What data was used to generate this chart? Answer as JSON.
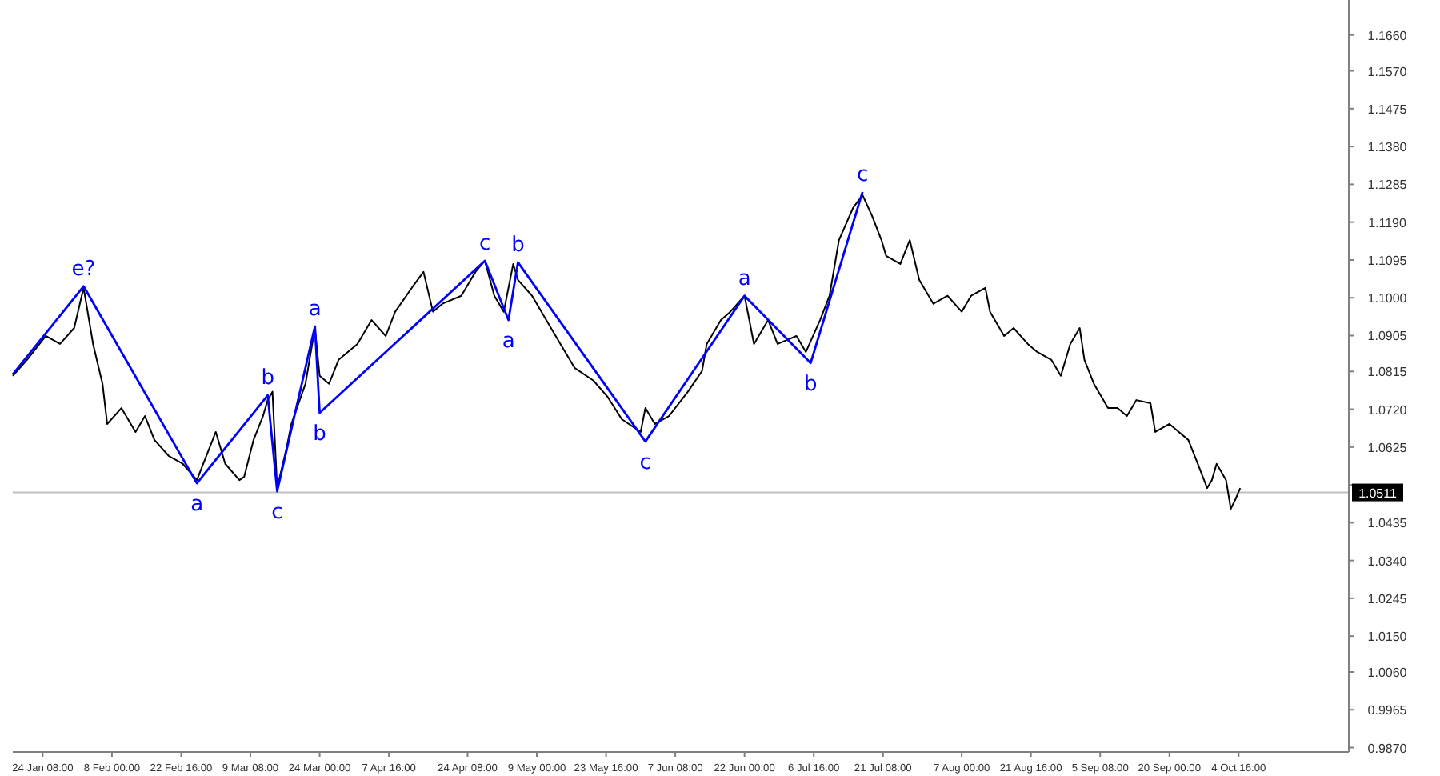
{
  "chart_data": {
    "type": "line",
    "xlim": [
      "--01-18",
      "--10-28"
    ],
    "xticks": [
      {
        "value": "--01-24T08:00",
        "label": "24 Jan 08:00"
      },
      {
        "value": "--02-08T00:00",
        "label": "8 Feb 00:00"
      },
      {
        "value": "--02-22T16:00",
        "label": "22 Feb 16:00"
      },
      {
        "value": "--03-09T08:00",
        "label": "9 Mar 08:00"
      },
      {
        "value": "--03-24T00:00",
        "label": "24 Mar 00:00"
      },
      {
        "value": "--04-07T16:00",
        "label": "7 Apr 16:00"
      },
      {
        "value": "--04-24T08:00",
        "label": "24 Apr 08:00"
      },
      {
        "value": "--05-09T00:00",
        "label": "9 May 00:00"
      },
      {
        "value": "--05-23T16:00",
        "label": "23 May 16:00"
      },
      {
        "value": "--06-07T08:00",
        "label": "7 Jun 08:00"
      },
      {
        "value": "--06-22T00:00",
        "label": "22 Jun 00:00"
      },
      {
        "value": "--07-06T16:00",
        "label": "6 Jul 16:00"
      },
      {
        "value": "--07-21T08:00",
        "label": "21 Jul 08:00"
      },
      {
        "value": "--08-07T00:00",
        "label": "7 Aug 00:00"
      },
      {
        "value": "--08-21T16:00",
        "label": "21 Aug 16:00"
      },
      {
        "value": "--09-05T08:00",
        "label": "5 Sep 08:00"
      },
      {
        "value": "--09-20T00:00",
        "label": "20 Sep 00:00"
      },
      {
        "value": "--10-04T16:00",
        "label": "4 Oct 16:00"
      }
    ],
    "ylim": [
      0.9859,
      1.1748
    ],
    "yticks": [
      {
        "value": 1.166,
        "label": "1.1660"
      },
      {
        "value": 1.157,
        "label": "1.1570"
      },
      {
        "value": 1.1475,
        "label": "1.1475"
      },
      {
        "value": 1.138,
        "label": "1.1380"
      },
      {
        "value": 1.1285,
        "label": "1.1285"
      },
      {
        "value": 1.119,
        "label": "1.1190"
      },
      {
        "value": 1.1095,
        "label": "1.1095"
      },
      {
        "value": 1.1,
        "label": "1.1000"
      },
      {
        "value": 1.0905,
        "label": "1.0905"
      },
      {
        "value": 1.0815,
        "label": "1.0815"
      },
      {
        "value": 1.072,
        "label": "1.0720"
      },
      {
        "value": 1.0625,
        "label": "1.0625"
      },
      {
        "value": 1.053,
        "label": null
      },
      {
        "value": 1.0435,
        "label": "1.0435"
      },
      {
        "value": 1.034,
        "label": "1.0340"
      },
      {
        "value": 1.0245,
        "label": "1.0245"
      },
      {
        "value": 1.015,
        "label": "1.0150"
      },
      {
        "value": 1.006,
        "label": "1.0060"
      },
      {
        "value": 0.9965,
        "label": "0.9965"
      },
      {
        "value": 0.987,
        "label": "0.9870"
      }
    ],
    "series": [
      {
        "color": "#000000",
        "x": [
          "--01-18",
          "--01-21",
          "--01-25",
          "--01-28",
          "--01-31",
          "--02-02",
          "--02-04",
          "--02-06",
          "--02-07",
          "--02-10",
          "--02-13",
          "--02-15",
          "--02-17",
          "--02-20",
          "--02-23",
          "--02-26",
          "--02-28",
          "--03-02",
          "--03-04",
          "--03-07",
          "--03-08",
          "--03-10",
          "--03-12",
          "--03-13",
          "--03-14",
          "--03-15",
          "--03-17",
          "--03-18",
          "--03-21",
          "--03-23",
          "--03-24",
          "--03-26",
          "--03-28",
          "--04-01",
          "--04-04",
          "--04-07",
          "--04-09",
          "--04-13",
          "--04-15",
          "--04-17",
          "--04-19",
          "--04-23",
          "--04-26",
          "--04-28",
          "--04-30",
          "--05-02",
          "--05-04",
          "--05-05",
          "--05-08",
          "--05-11",
          "--05-14",
          "--05-17",
          "--05-21",
          "--05-24",
          "--05-27",
          "--05-31",
          "--06-01",
          "--06-03",
          "--06-06",
          "--06-10",
          "--06-13",
          "--06-14",
          "--06-17",
          "--06-19",
          "--06-22",
          "--06-24",
          "--06-27",
          "--06-29",
          "--07-03",
          "--07-05",
          "--07-08",
          "--07-10",
          "--07-12",
          "--07-15",
          "--07-17",
          "--07-19",
          "--07-21",
          "--07-22",
          "--07-25",
          "--07-27",
          "--07-29",
          "--08-01",
          "--08-04",
          "--08-07",
          "--08-09",
          "--08-12",
          "--08-13",
          "--08-16",
          "--08-18",
          "--08-21",
          "--08-23",
          "--08-26",
          "--08-28",
          "--08-30",
          "--09-01",
          "--09-02",
          "--09-04",
          "--09-07",
          "--09-09",
          "--09-11",
          "--09-13",
          "--09-16",
          "--09-17",
          "--09-20",
          "--09-22",
          "--09-24",
          "--09-26",
          "--09-28",
          "--09-29",
          "--09-30",
          "--10-02",
          "--10-03",
          "--10-04",
          "--10-05"
        ],
        "values": [
          1.0804,
          1.0844,
          1.0904,
          1.0884,
          1.0924,
          1.1025,
          1.0884,
          1.0784,
          1.0683,
          1.0723,
          1.0663,
          1.0703,
          1.0643,
          1.0603,
          1.0583,
          1.0542,
          1.0603,
          1.0663,
          1.0583,
          1.0542,
          1.055,
          1.0643,
          1.0703,
          1.0743,
          1.0764,
          1.0522,
          1.0623,
          1.0683,
          1.0784,
          1.0924,
          1.0804,
          1.0784,
          1.0844,
          1.0884,
          1.0944,
          1.0904,
          1.0965,
          1.1033,
          1.1065,
          1.0965,
          1.0985,
          1.1005,
          1.1065,
          1.1093,
          1.1005,
          1.0965,
          1.1085,
          1.1045,
          1.1005,
          1.0944,
          1.0884,
          1.0824,
          1.0792,
          1.0751,
          1.0695,
          1.0663,
          1.0723,
          1.0683,
          1.0703,
          1.0764,
          1.0816,
          1.0884,
          1.0944,
          1.0965,
          1.1005,
          1.0884,
          1.0944,
          1.0884,
          1.0904,
          1.0864,
          1.0944,
          1.1005,
          1.1145,
          1.1226,
          1.1258,
          1.1206,
          1.1145,
          1.1105,
          1.1085,
          1.1145,
          1.1045,
          1.0985,
          1.1005,
          1.0965,
          1.1005,
          1.1025,
          1.0965,
          1.0904,
          1.0924,
          1.0884,
          1.0864,
          1.0844,
          1.0804,
          1.0884,
          1.0924,
          1.0844,
          1.0784,
          1.0723,
          1.0723,
          1.0703,
          1.0743,
          1.0735,
          1.0663,
          1.0683,
          1.0663,
          1.0643,
          1.0583,
          1.0522,
          1.0542,
          1.0583,
          1.0542,
          1.047,
          1.0494,
          1.0522
        ]
      },
      {
        "color": "#0000ff",
        "x": [
          "--01-18",
          "--02-02",
          "--02-26",
          "--03-13",
          "--03-15",
          "--03-23",
          "--03-24",
          "--04-28",
          "--05-03",
          "--05-05",
          "--06-01",
          "--06-22",
          "--07-06",
          "--07-17"
        ],
        "values": [
          1.0808,
          1.1029,
          1.0534,
          1.0755,
          1.0514,
          1.0928,
          1.0711,
          1.1093,
          1.0944,
          1.1089,
          1.0639,
          1.1005,
          1.0836,
          1.1266
        ]
      }
    ],
    "annotations": [
      {
        "text": "e?",
        "x": "--02-02",
        "y": 1.1029
      },
      {
        "text": "a",
        "x": "--02-26",
        "y": 1.0534
      },
      {
        "text": "b",
        "x": "--03-13",
        "y": 1.0755
      },
      {
        "text": "c",
        "x": "--03-15",
        "y": 1.0514
      },
      {
        "text": "a",
        "x": "--03-23",
        "y": 1.0928
      },
      {
        "text": "b",
        "x": "--03-24",
        "y": 1.0711
      },
      {
        "text": "c",
        "x": "--04-28",
        "y": 1.1093
      },
      {
        "text": "a",
        "x": "--05-03",
        "y": 1.0944
      },
      {
        "text": "b",
        "x": "--05-05",
        "y": 1.1089
      },
      {
        "text": "c",
        "x": "--06-01",
        "y": 1.0639
      },
      {
        "text": "a",
        "x": "--06-22",
        "y": 1.1005
      },
      {
        "text": "b",
        "x": "--07-06",
        "y": 1.0836
      },
      {
        "text": "c",
        "x": "--07-17",
        "y": 1.1266
      }
    ],
    "ref_lines": [
      {
        "axis": "y",
        "value": 1.0511,
        "label": "1.0511",
        "color": "#c0c0c0"
      }
    ],
    "grid": false,
    "marker": "none",
    "line_style": "solid"
  }
}
